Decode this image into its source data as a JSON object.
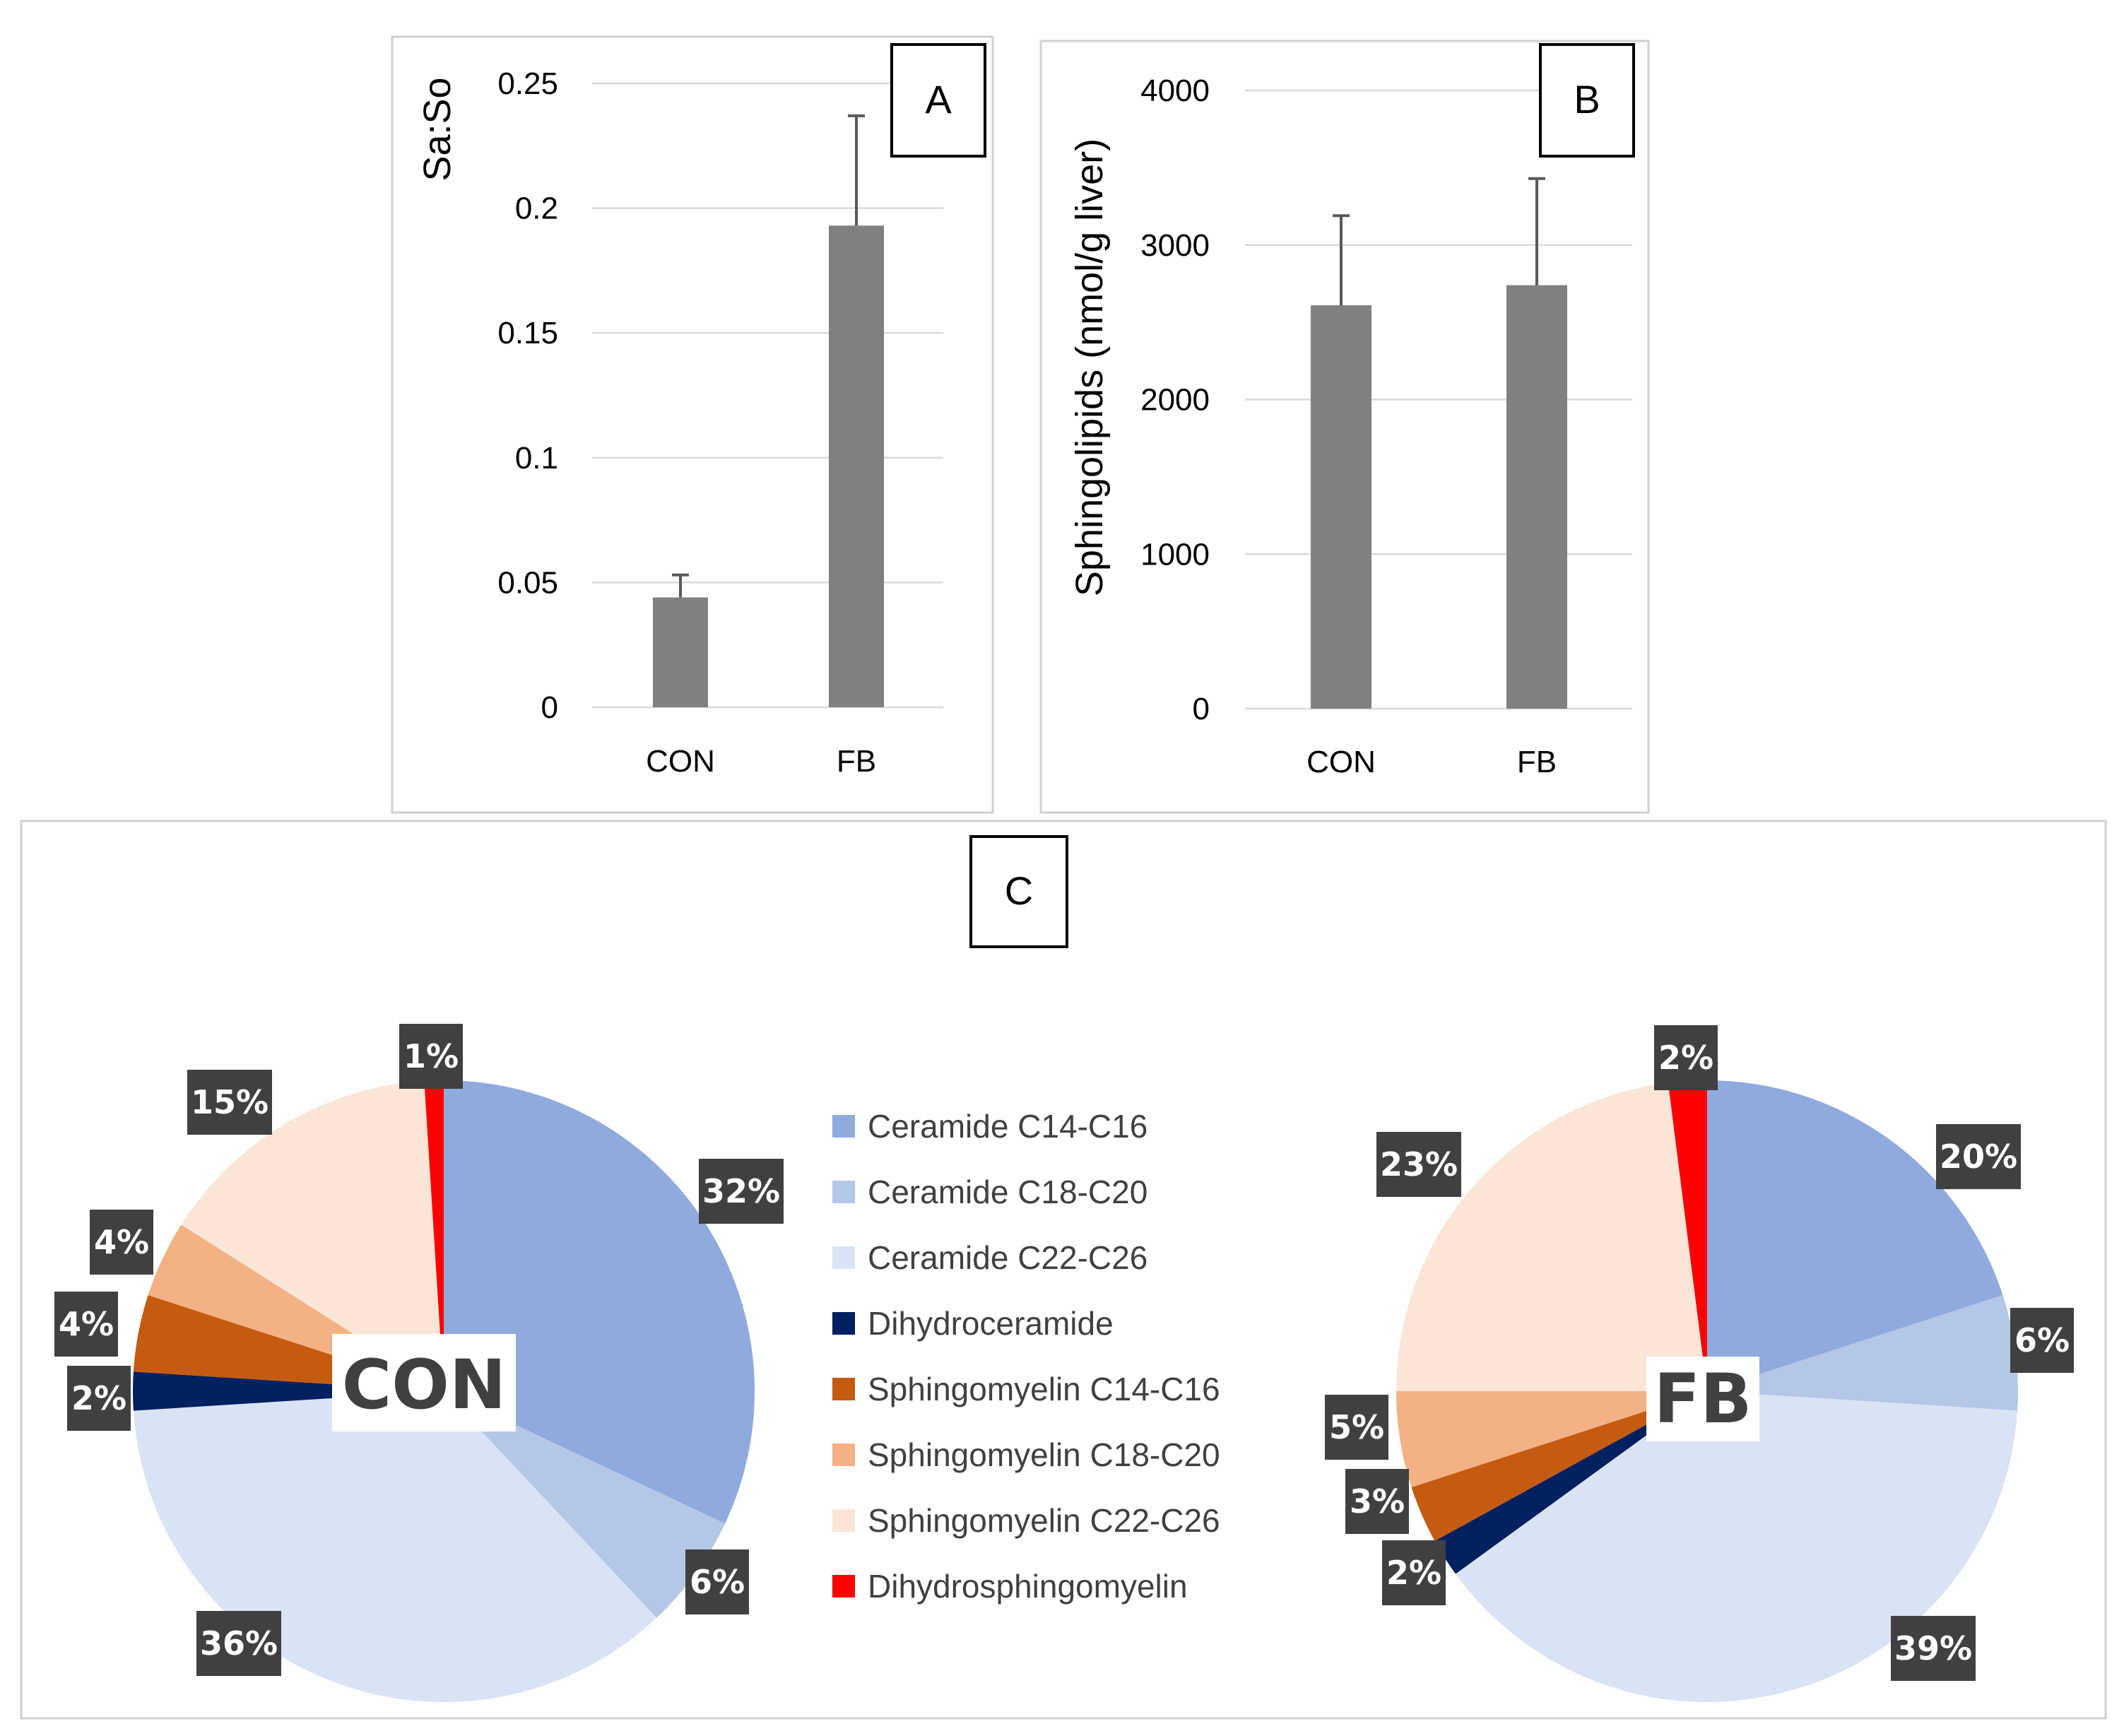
{
  "chart_data": [
    {
      "id": "A",
      "type": "bar",
      "panel_label": "A",
      "ylabel": "Sa:So",
      "categories": [
        "CON",
        "FB"
      ],
      "values": [
        0.044,
        0.193
      ],
      "error": [
        0.009,
        0.044
      ],
      "ylim": [
        0,
        0.25
      ],
      "yticks": [
        0,
        0.05,
        0.1,
        0.15,
        0.2,
        0.25
      ],
      "ytick_labels": [
        "0",
        "0.05",
        "0.1",
        "0.15",
        "0.2",
        "0.25"
      ],
      "grid": true,
      "bar_color": "#808080"
    },
    {
      "id": "B",
      "type": "bar",
      "panel_label": "B",
      "ylabel": "Sphingolipids (nmol/g liver)",
      "categories": [
        "CON",
        "FB"
      ],
      "values": [
        2610,
        2740
      ],
      "error": [
        580,
        690
      ],
      "ylim": [
        0,
        4000
      ],
      "yticks": [
        0,
        1000,
        2000,
        3000,
        4000
      ],
      "ytick_labels": [
        "0",
        "1000",
        "2000",
        "3000",
        "4000"
      ],
      "grid": true,
      "bar_color": "#808080"
    },
    {
      "id": "C",
      "type": "pie",
      "panel_label": "C",
      "legend": [
        {
          "name": "Ceramide C14-C16",
          "color": "#8faadc"
        },
        {
          "name": "Ceramide C18-C20",
          "color": "#b4c7e7"
        },
        {
          "name": "Ceramide C22-C26",
          "color": "#dae3f3"
        },
        {
          "name": "Dihydroceramide",
          "color": "#002060"
        },
        {
          "name": "Sphingomyelin C14-C16",
          "color": "#c55a11"
        },
        {
          "name": "Sphingomyelin C18-C20",
          "color": "#f4b183"
        },
        {
          "name": "Sphingomyelin C22-C26",
          "color": "#fbe5d6"
        },
        {
          "name": "Dihydrosphingomyelin",
          "color": "#ff0000"
        }
      ],
      "pies": [
        {
          "name": "CON",
          "values": [
            32,
            6,
            36,
            2,
            4,
            4,
            15,
            1
          ],
          "labels": [
            "32%",
            "6%",
            "36%",
            "2%",
            "4%",
            "4%",
            "15%",
            "1%"
          ]
        },
        {
          "name": "FB",
          "values": [
            20,
            6,
            39,
            2,
            3,
            5,
            23,
            2
          ],
          "labels": [
            "20%",
            "6%",
            "39%",
            "2%",
            "3%",
            "5%",
            "23%",
            "2%"
          ]
        }
      ]
    }
  ]
}
